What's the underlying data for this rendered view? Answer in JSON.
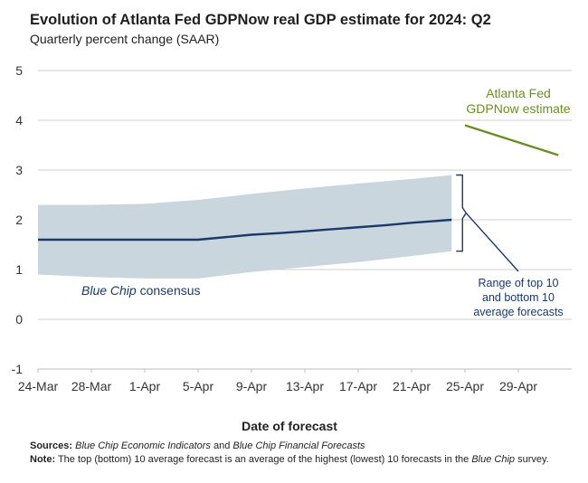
{
  "header": {
    "title": "Evolution of Atlanta Fed GDPNow real GDP estimate for 2024: Q2",
    "subtitle": "Quarterly percent change (SAAR)"
  },
  "chart_data": {
    "type": "line",
    "xlabel": "Date of forecast",
    "ylabel": "",
    "ylim": [
      -1,
      5
    ],
    "yticks": [
      "-1",
      "0",
      "1",
      "2",
      "3",
      "4",
      "5"
    ],
    "xticks": [
      "24-Mar",
      "28-Mar",
      "1-Apr",
      "5-Apr",
      "9-Apr",
      "13-Apr",
      "17-Apr",
      "21-Apr",
      "25-Apr",
      "29-Apr"
    ],
    "x_start": "2024-03-24",
    "x_end": "2024-05-03",
    "grid": true,
    "series": [
      {
        "name": "Blue Chip consensus",
        "color": "#1b3a6b",
        "x": [
          "2024-03-24",
          "2024-03-28",
          "2024-04-01",
          "2024-04-05",
          "2024-04-07",
          "2024-04-09",
          "2024-04-11",
          "2024-04-13",
          "2024-04-15",
          "2024-04-17",
          "2024-04-19",
          "2024-04-21",
          "2024-04-24"
        ],
        "values": [
          1.6,
          1.6,
          1.6,
          1.6,
          1.65,
          1.7,
          1.73,
          1.77,
          1.81,
          1.85,
          1.89,
          1.94,
          2.0
        ]
      },
      {
        "name": "Atlanta Fed GDPNow estimate",
        "color": "#6b8e23",
        "x": [
          "2024-04-25",
          "2024-05-02"
        ],
        "values": [
          3.9,
          3.3
        ]
      }
    ],
    "band": {
      "name": "Range of top 10 and bottom 10 average forecasts",
      "color": "#c9d6dd",
      "x": [
        "2024-03-24",
        "2024-03-28",
        "2024-04-01",
        "2024-04-05",
        "2024-04-09",
        "2024-04-13",
        "2024-04-17",
        "2024-04-21",
        "2024-04-24"
      ],
      "upper": [
        2.3,
        2.3,
        2.32,
        2.4,
        2.52,
        2.63,
        2.73,
        2.82,
        2.9
      ],
      "lower": [
        0.9,
        0.85,
        0.82,
        0.82,
        0.95,
        1.05,
        1.15,
        1.27,
        1.37
      ]
    },
    "annotations": {
      "consensus_italic": "Blue Chip",
      "consensus_rest": " consensus",
      "gdpnow_line1": "Atlanta Fed",
      "gdpnow_line2": "GDPNow estimate",
      "range_line1": "Range of top 10",
      "range_line2": "and bottom 10",
      "range_line3": "average forecasts"
    }
  },
  "notes": {
    "sources_label": "Sources:",
    "sources_italic1": "Blue Chip Economic Indicators",
    "sources_mid": " and ",
    "sources_italic2": "Blue Chip Financial Forecasts",
    "note_label": "Note:",
    "note_text1": " The top (bottom) 10 average forecast is an average of the highest (lowest) 10 forecasts in the ",
    "note_italic": "Blue Chip",
    "note_text2": " survey."
  }
}
